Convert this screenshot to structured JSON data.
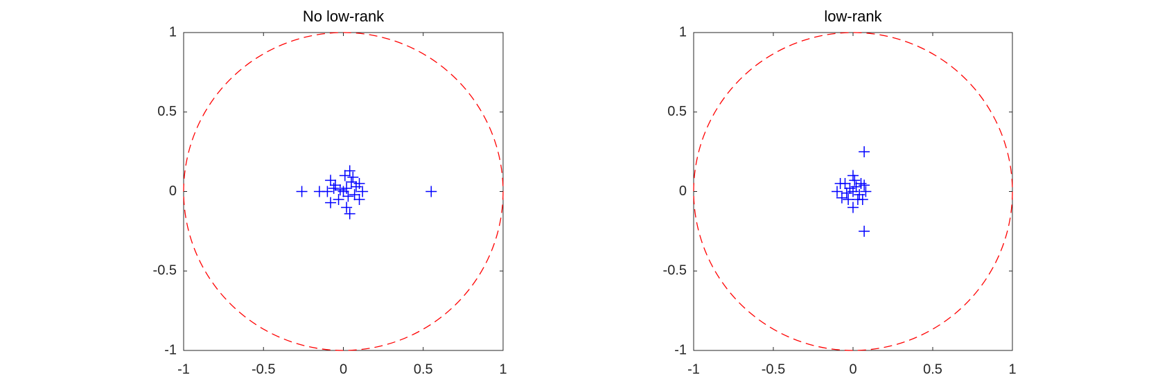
{
  "chart_data": [
    {
      "type": "scatter",
      "title": "No low-rank",
      "color": "#0000ff",
      "x": [
        -0.26,
        -0.15,
        0.55,
        0.04,
        0.04,
        -0.08,
        -0.08,
        0.12,
        0.1,
        0.1,
        -0.1,
        -0.05,
        0.0,
        0.02,
        0.03,
        0.05,
        0.07,
        -0.03,
        0.01,
        0.06,
        -0.06,
        0.02,
        0.08,
        -0.02
      ],
      "y": [
        0.0,
        0.0,
        0.0,
        0.13,
        -0.14,
        0.07,
        -0.07,
        0.0,
        0.05,
        -0.05,
        0.0,
        0.04,
        0.0,
        0.02,
        -0.03,
        0.06,
        -0.02,
        -0.05,
        0.1,
        0.09,
        0.02,
        -0.1,
        0.03,
        0.01
      ],
      "xlim": [
        -1,
        1
      ],
      "ylim": [
        -1,
        1
      ],
      "xticks": [
        -1,
        -0.5,
        0,
        0.5,
        1
      ],
      "yticks": [
        -1,
        -0.5,
        0,
        0.5,
        1
      ]
    },
    {
      "type": "scatter",
      "title": "low-rank",
      "color": "#0000ff",
      "x": [
        0.07,
        0.07,
        -0.1,
        0.08,
        0.0,
        -0.05,
        0.05,
        -0.03,
        0.03,
        0.0,
        0.0,
        -0.07,
        0.06,
        -0.02,
        0.02,
        0.04,
        -0.04,
        0.01,
        -0.08,
        0.07
      ],
      "y": [
        0.25,
        -0.25,
        0.0,
        0.0,
        0.1,
        0.05,
        0.05,
        -0.05,
        -0.05,
        -0.1,
        0.0,
        -0.04,
        -0.05,
        0.02,
        0.03,
        -0.02,
        -0.01,
        0.07,
        0.05,
        0.04
      ],
      "xlim": [
        -1,
        1
      ],
      "ylim": [
        -1,
        1
      ],
      "xticks": [
        -1,
        -0.5,
        0,
        0.5,
        1
      ],
      "yticks": [
        -1,
        -0.5,
        0,
        0.5,
        1
      ]
    }
  ]
}
